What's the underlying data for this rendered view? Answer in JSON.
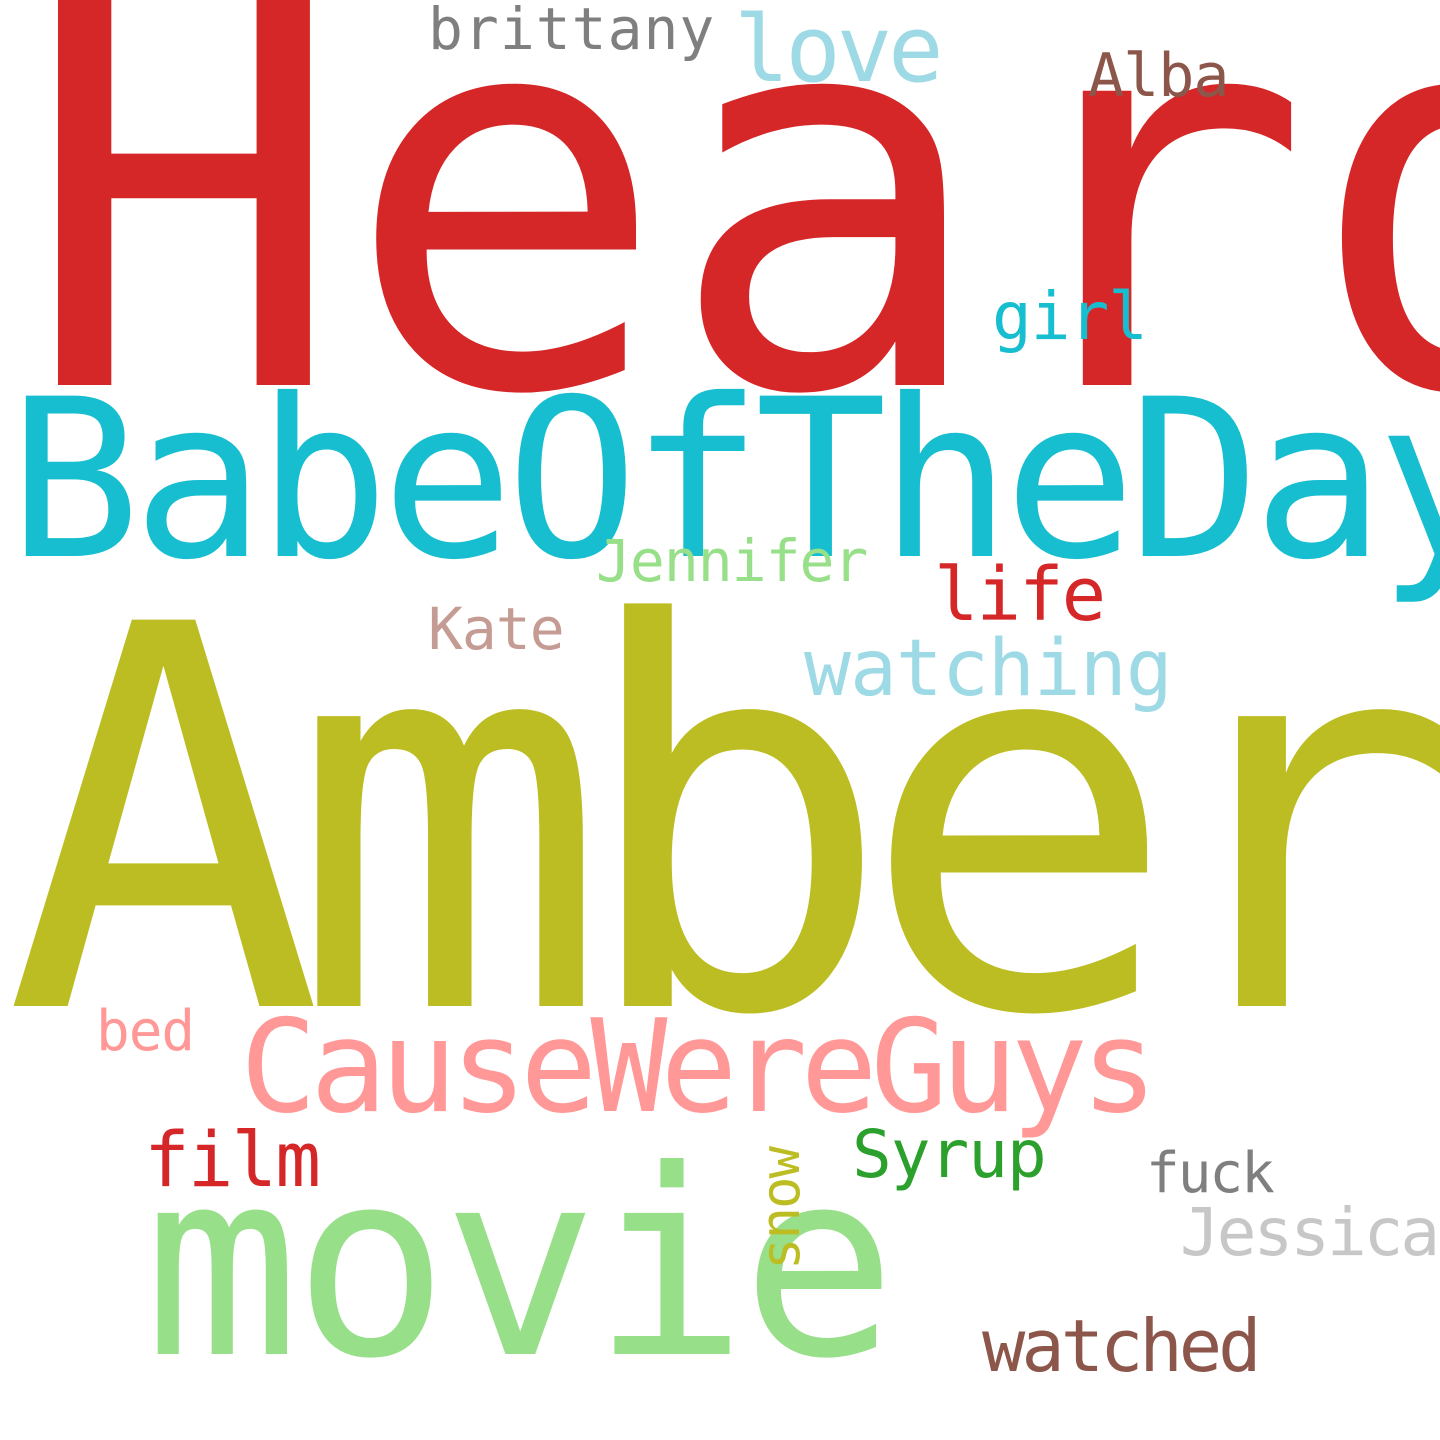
{
  "words": [
    {
      "id": "heard",
      "text": "Heard",
      "color": "#d62728"
    },
    {
      "id": "babeoftheday",
      "text": "BabeOfTheDay",
      "color": "#17becf"
    },
    {
      "id": "amber",
      "text": "Amber",
      "color": "#bcbd22"
    },
    {
      "id": "causewereguys",
      "text": "CauseWereGuys",
      "color": "#ff9896"
    },
    {
      "id": "movie",
      "text": "movie",
      "color": "#98df8a"
    },
    {
      "id": "brittany",
      "text": "brittany",
      "color": "#7f7f7f"
    },
    {
      "id": "love",
      "text": "love",
      "color": "#9edae5"
    },
    {
      "id": "alba",
      "text": "Alba",
      "color": "#8c564b"
    },
    {
      "id": "girl",
      "text": "girl",
      "color": "#17becf"
    },
    {
      "id": "jennifer",
      "text": "Jennifer",
      "color": "#98df8a"
    },
    {
      "id": "life",
      "text": "life",
      "color": "#d62728"
    },
    {
      "id": "kate",
      "text": "Kate",
      "color": "#c49c94"
    },
    {
      "id": "watching",
      "text": "watching",
      "color": "#9edae5"
    },
    {
      "id": "bed",
      "text": "bed",
      "color": "#ff9896"
    },
    {
      "id": "film",
      "text": "film",
      "color": "#d62728"
    },
    {
      "id": "snow",
      "text": "snow",
      "color": "#bcbd22"
    },
    {
      "id": "syrup",
      "text": "Syrup",
      "color": "#2ca02c"
    },
    {
      "id": "fuck",
      "text": "fuck",
      "color": "#7f7f7f"
    },
    {
      "id": "jessica",
      "text": "Jessica",
      "color": "#c7c7c7"
    },
    {
      "id": "watched",
      "text": "watched",
      "color": "#8c564b"
    }
  ]
}
